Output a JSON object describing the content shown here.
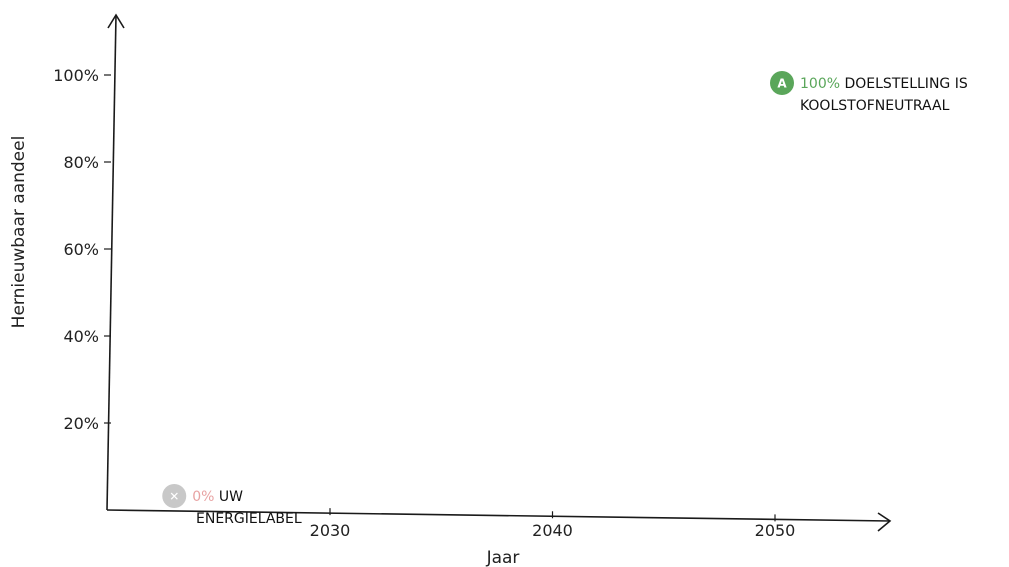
{
  "chart_data": {
    "type": "scatter",
    "title": "",
    "xlabel": "Jaar",
    "ylabel": "Hernieuwbaar aandeel",
    "xlim": [
      2020,
      2055
    ],
    "ylim": [
      0,
      110
    ],
    "x_ticks": [
      2030,
      2040,
      2050
    ],
    "x_tick_labels": [
      "2030",
      "2040",
      "2050"
    ],
    "y_ticks": [
      20,
      40,
      60,
      80,
      100
    ],
    "y_tick_labels": [
      "20%",
      "40%",
      "60%",
      "80%",
      "100%"
    ],
    "grid": false,
    "points": [
      {
        "x": 2050,
        "y": 100,
        "badge": "A",
        "value_label": "100%",
        "text_line1": "DOELSTELLING IS",
        "text_line2": "KOOLSTOFNEUTRAAL",
        "color": "#5aa65a"
      },
      {
        "x": 2023,
        "y": 0,
        "badge": "✕",
        "value_label": "0%",
        "text_line1": "UW",
        "text_line2": "ENERGIELABEL",
        "color": "#c8c8c8"
      }
    ]
  },
  "colors": {
    "axis": "#1a1a1a",
    "green": "#5aa65a",
    "grey_badge": "#c8c8c8",
    "pink_value": "#e8a3a3"
  }
}
